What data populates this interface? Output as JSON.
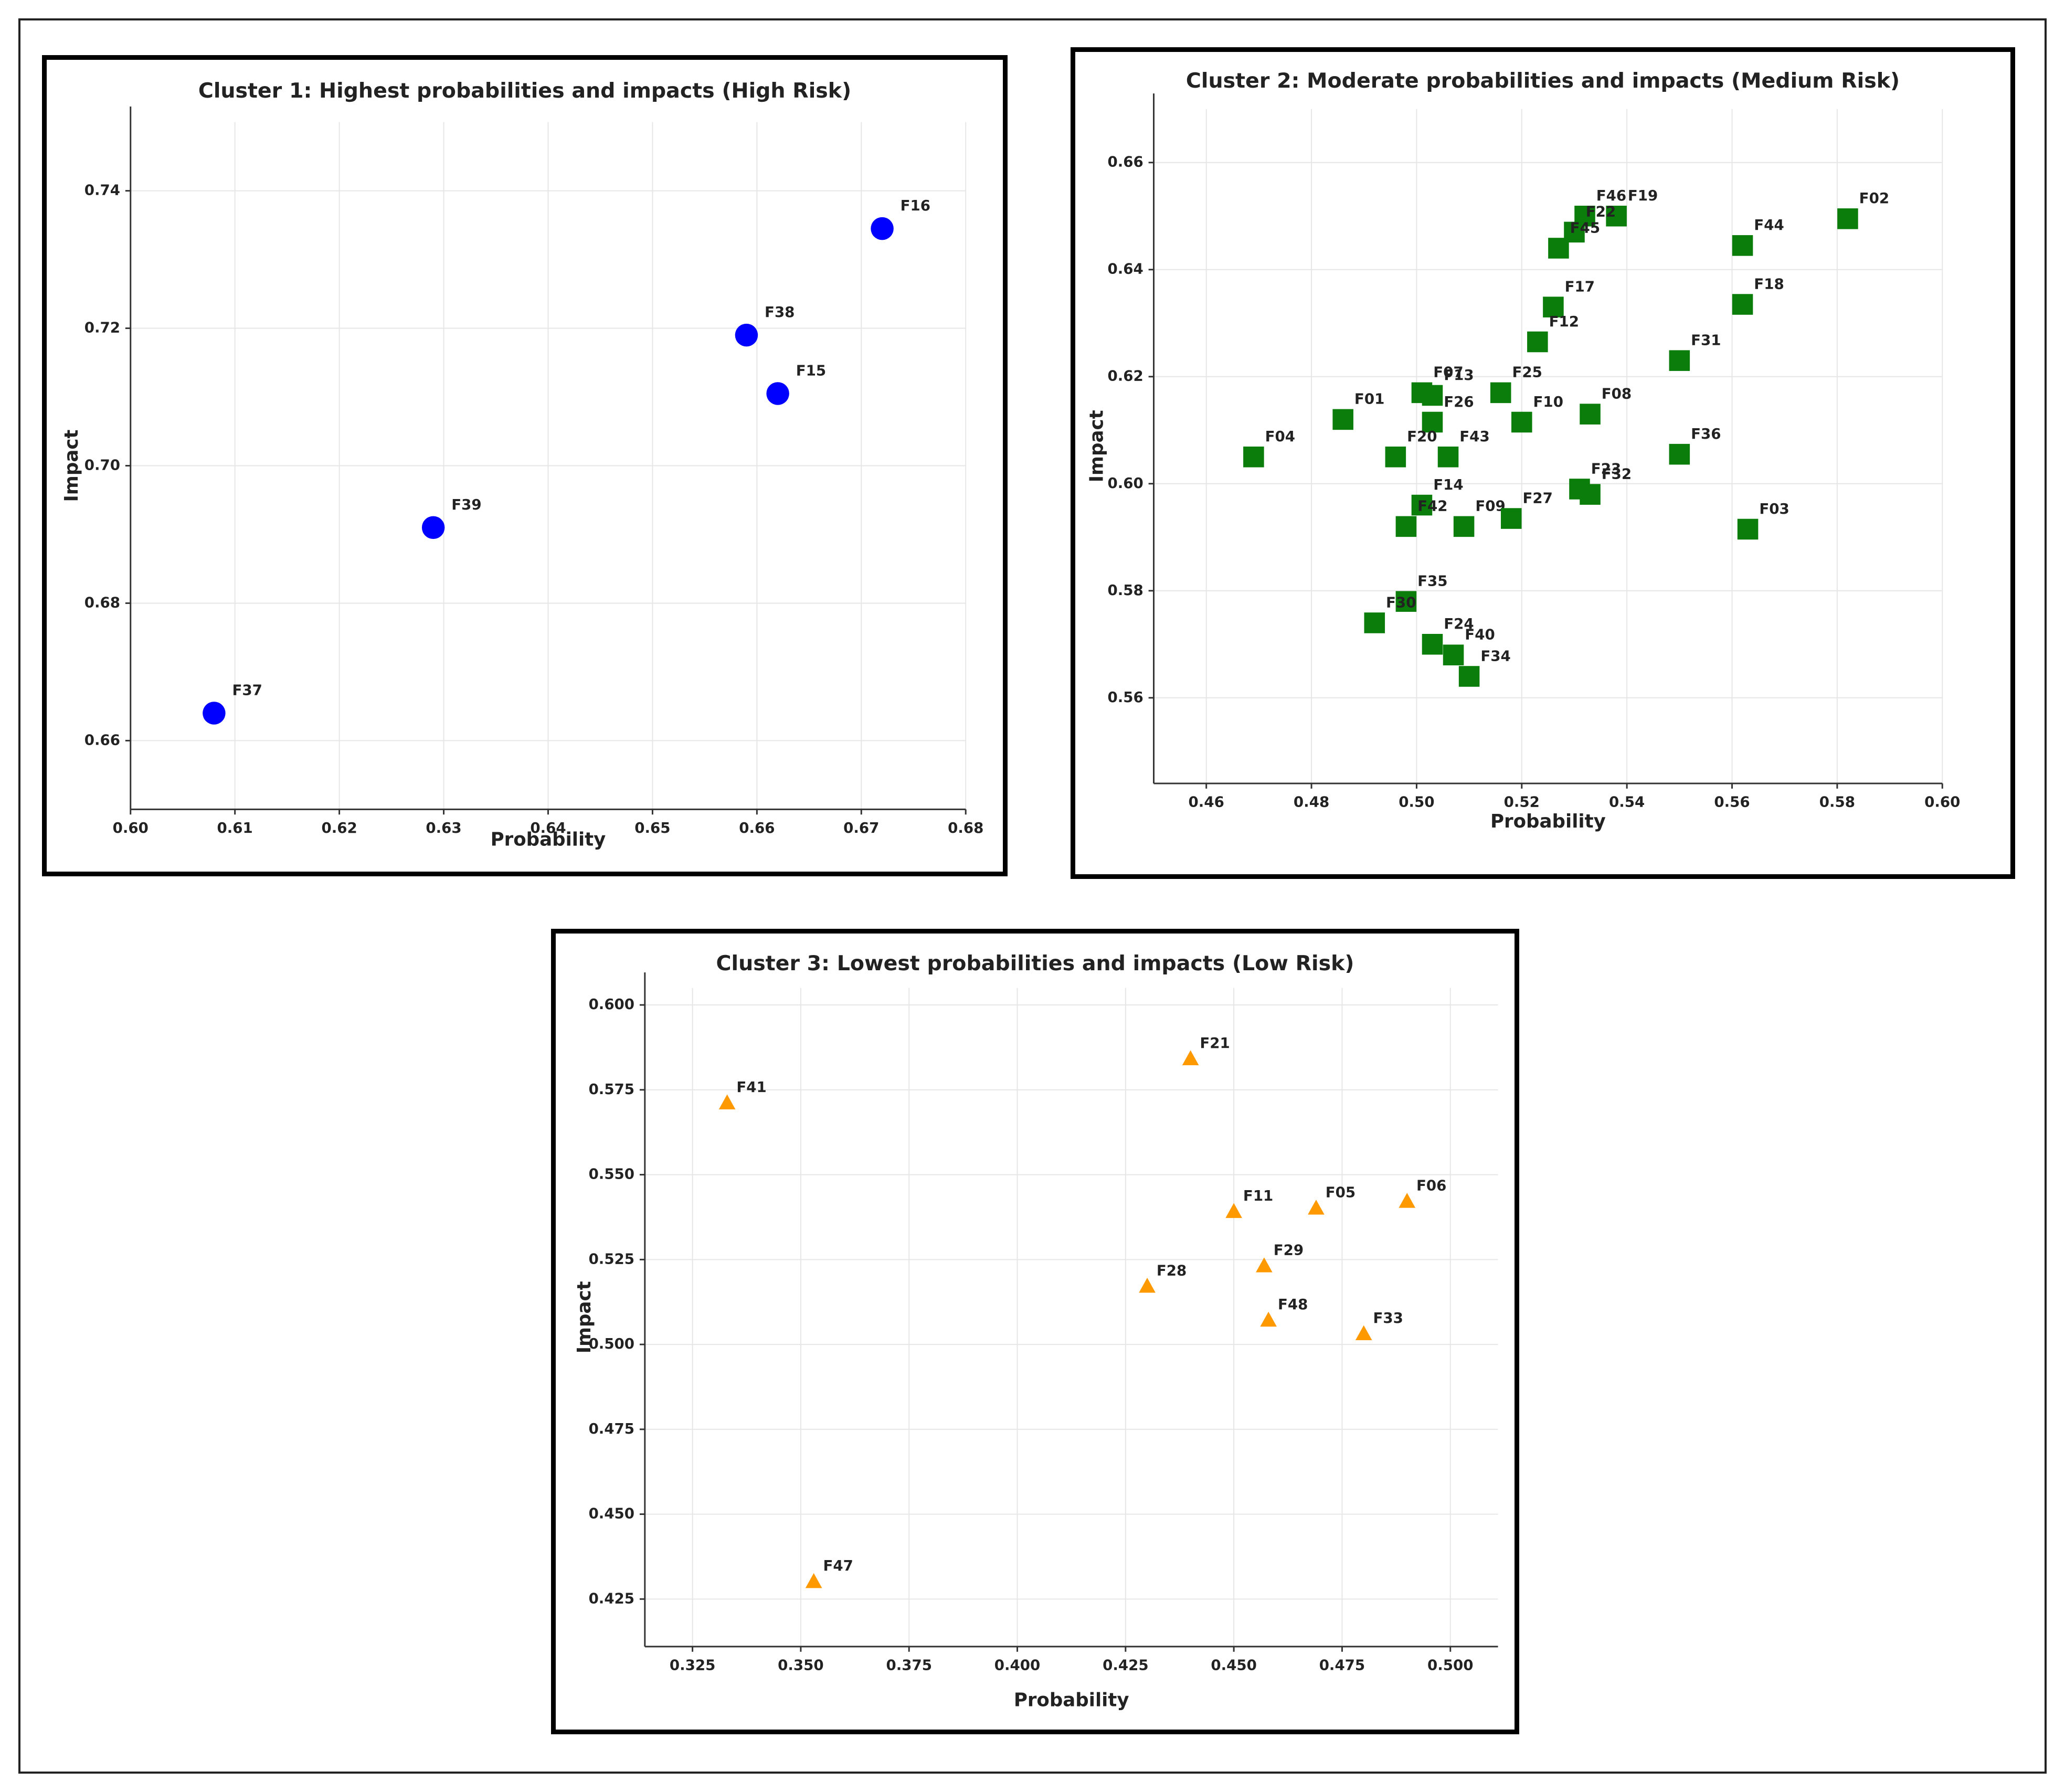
{
  "chart_data": [
    {
      "type": "scatter",
      "title": "Cluster 1: Highest probabilities and impacts (High Risk)",
      "xlabel": "Probability",
      "ylabel": "Impact",
      "xlim": [
        0.6,
        0.68
      ],
      "ylim": [
        0.65,
        0.75
      ],
      "xticks": [
        "0.60",
        "0.61",
        "0.62",
        "0.63",
        "0.64",
        "0.65",
        "0.66",
        "0.67",
        "0.68"
      ],
      "yticks": [
        "0.66",
        "0.68",
        "0.70",
        "0.72",
        "0.74"
      ],
      "grid": true,
      "marker": "circle",
      "color": "#0000ff",
      "points": [
        {
          "label": "F16",
          "x": 0.672,
          "y": 0.7345
        },
        {
          "label": "F38",
          "x": 0.659,
          "y": 0.719
        },
        {
          "label": "F15",
          "x": 0.662,
          "y": 0.7105
        },
        {
          "label": "F39",
          "x": 0.629,
          "y": 0.691
        },
        {
          "label": "F37",
          "x": 0.608,
          "y": 0.664
        }
      ]
    },
    {
      "type": "scatter",
      "title": "Cluster 2: Moderate probabilities and impacts (Medium Risk)",
      "xlabel": "Probability",
      "ylabel": "Impact",
      "xlim": [
        0.45,
        0.6
      ],
      "ylim": [
        0.544,
        0.67
      ],
      "xticks": [
        "0.46",
        "0.48",
        "0.50",
        "0.52",
        "0.54",
        "0.56",
        "0.58",
        "0.60"
      ],
      "yticks": [
        "0.56",
        "0.58",
        "0.60",
        "0.62",
        "0.64",
        "0.66"
      ],
      "grid": true,
      "marker": "square",
      "color": "#0a7d0a",
      "points": [
        {
          "label": "F02",
          "x": 0.582,
          "y": 0.6495
        },
        {
          "label": "F46",
          "x": 0.532,
          "y": 0.65
        },
        {
          "label": "F19",
          "x": 0.538,
          "y": 0.65
        },
        {
          "label": "F22",
          "x": 0.53,
          "y": 0.647
        },
        {
          "label": "F45",
          "x": 0.527,
          "y": 0.644
        },
        {
          "label": "F44",
          "x": 0.562,
          "y": 0.6445
        },
        {
          "label": "F17",
          "x": 0.526,
          "y": 0.633
        },
        {
          "label": "F18",
          "x": 0.562,
          "y": 0.6335
        },
        {
          "label": "F12",
          "x": 0.523,
          "y": 0.6265
        },
        {
          "label": "F31",
          "x": 0.55,
          "y": 0.623
        },
        {
          "label": "F07",
          "x": 0.501,
          "y": 0.617
        },
        {
          "label": "F13",
          "x": 0.503,
          "y": 0.6165
        },
        {
          "label": "F25",
          "x": 0.516,
          "y": 0.617
        },
        {
          "label": "F01",
          "x": 0.486,
          "y": 0.612
        },
        {
          "label": "F26",
          "x": 0.503,
          "y": 0.6115
        },
        {
          "label": "F10",
          "x": 0.52,
          "y": 0.6115
        },
        {
          "label": "F08",
          "x": 0.533,
          "y": 0.613
        },
        {
          "label": "F04",
          "x": 0.469,
          "y": 0.605
        },
        {
          "label": "F20",
          "x": 0.496,
          "y": 0.605
        },
        {
          "label": "F43",
          "x": 0.506,
          "y": 0.605
        },
        {
          "label": "F36",
          "x": 0.55,
          "y": 0.6055
        },
        {
          "label": "F23",
          "x": 0.531,
          "y": 0.599
        },
        {
          "label": "F32",
          "x": 0.533,
          "y": 0.598
        },
        {
          "label": "F14",
          "x": 0.501,
          "y": 0.596
        },
        {
          "label": "F42",
          "x": 0.498,
          "y": 0.592
        },
        {
          "label": "F09",
          "x": 0.509,
          "y": 0.592
        },
        {
          "label": "F27",
          "x": 0.518,
          "y": 0.5935
        },
        {
          "label": "F03",
          "x": 0.563,
          "y": 0.5915
        },
        {
          "label": "F35",
          "x": 0.498,
          "y": 0.578
        },
        {
          "label": "F30",
          "x": 0.492,
          "y": 0.574
        },
        {
          "label": "F24",
          "x": 0.503,
          "y": 0.57
        },
        {
          "label": "F40",
          "x": 0.507,
          "y": 0.568
        },
        {
          "label": "F34",
          "x": 0.51,
          "y": 0.564
        }
      ]
    },
    {
      "type": "scatter",
      "title": "Cluster 3: Lowest probabilities and impacts (Low Risk)",
      "xlabel": "Probability",
      "ylabel": "Impact",
      "xlim": [
        0.314,
        0.511
      ],
      "ylim": [
        0.411,
        0.605
      ],
      "xticks": [
        "0.325",
        "0.350",
        "0.375",
        "0.400",
        "0.425",
        "0.450",
        "0.475",
        "0.500"
      ],
      "yticks": [
        "0.425",
        "0.450",
        "0.475",
        "0.500",
        "0.525",
        "0.550",
        "0.575",
        "0.600"
      ],
      "grid": true,
      "marker": "triangle",
      "color": "#ff9900",
      "points": [
        {
          "label": "F21",
          "x": 0.44,
          "y": 0.584
        },
        {
          "label": "F41",
          "x": 0.333,
          "y": 0.571
        },
        {
          "label": "F06",
          "x": 0.49,
          "y": 0.542
        },
        {
          "label": "F11",
          "x": 0.45,
          "y": 0.539
        },
        {
          "label": "F05",
          "x": 0.469,
          "y": 0.54
        },
        {
          "label": "F29",
          "x": 0.457,
          "y": 0.523
        },
        {
          "label": "F28",
          "x": 0.43,
          "y": 0.517
        },
        {
          "label": "F48",
          "x": 0.458,
          "y": 0.507
        },
        {
          "label": "F33",
          "x": 0.48,
          "y": 0.503
        },
        {
          "label": "F47",
          "x": 0.353,
          "y": 0.43
        }
      ]
    }
  ]
}
